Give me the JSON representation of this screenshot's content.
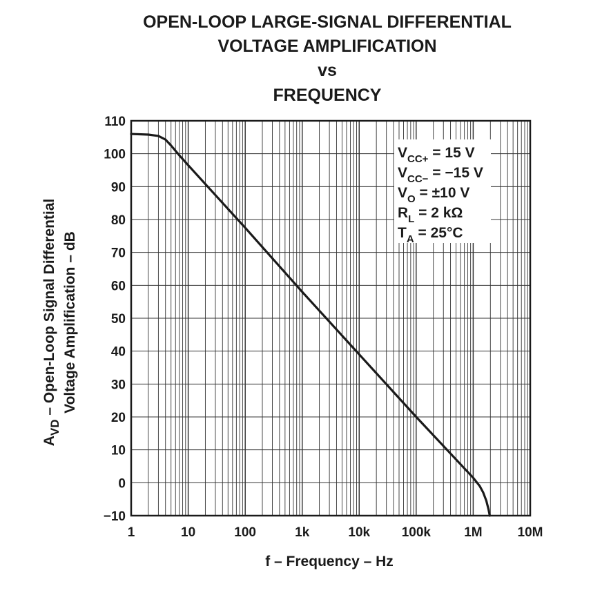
{
  "chart_data": {
    "type": "line",
    "title_lines": [
      "OPEN-LOOP LARGE-SIGNAL DIFFERENTIAL",
      "VOLTAGE AMPLIFICATION",
      "vs",
      "FREQUENCY"
    ],
    "xlabel": "f – Frequency – Hz",
    "ylabel": {
      "line1_prefix": "A",
      "line1_sub": "VD",
      "line1_rest": " – Open-Loop Signal Differential",
      "line2": "Voltage Amplification – dB"
    },
    "x_scale": "log",
    "xlim": [
      1,
      10000000
    ],
    "ylim": [
      -10,
      110
    ],
    "x_ticks": [
      {
        "value": 1,
        "label": "1"
      },
      {
        "value": 10,
        "label": "10"
      },
      {
        "value": 100,
        "label": "100"
      },
      {
        "value": 1000,
        "label": "1k"
      },
      {
        "value": 10000,
        "label": "10k"
      },
      {
        "value": 100000,
        "label": "100k"
      },
      {
        "value": 1000000,
        "label": "1M"
      },
      {
        "value": 10000000,
        "label": "10M"
      }
    ],
    "y_ticks": [
      {
        "value": 110,
        "label": "110"
      },
      {
        "value": 100,
        "label": "100"
      },
      {
        "value": 90,
        "label": "90"
      },
      {
        "value": 80,
        "label": "80"
      },
      {
        "value": 70,
        "label": "70"
      },
      {
        "value": 60,
        "label": "60"
      },
      {
        "value": 50,
        "label": "50"
      },
      {
        "value": 40,
        "label": "40"
      },
      {
        "value": 30,
        "label": "30"
      },
      {
        "value": 20,
        "label": "20"
      },
      {
        "value": 10,
        "label": "10"
      },
      {
        "value": 0,
        "label": "0"
      },
      {
        "value": -10,
        "label": "−10"
      }
    ],
    "grid": true,
    "series": [
      {
        "color": "#1a1a1a",
        "points": [
          [
            1,
            106
          ],
          [
            2,
            105.8
          ],
          [
            3,
            105.4
          ],
          [
            4,
            104.3
          ],
          [
            5,
            102.5
          ],
          [
            7,
            99.5
          ],
          [
            10,
            96.5
          ],
          [
            100,
            77.5
          ],
          [
            1000,
            58
          ],
          [
            10000,
            39
          ],
          [
            100000,
            20
          ],
          [
            1000000,
            1.5
          ],
          [
            1300000,
            -1
          ],
          [
            1500000,
            -3
          ],
          [
            1700000,
            -5.5
          ],
          [
            1850000,
            -8
          ],
          [
            1950000,
            -10
          ]
        ]
      }
    ],
    "conditions": [
      {
        "main": "V",
        "sub": "CC+",
        "rest": " = 15 V"
      },
      {
        "main": "V",
        "sub": "CC−",
        "rest": " = −15 V"
      },
      {
        "main": "V",
        "sub": "O",
        "rest": " = ±10 V"
      },
      {
        "main": "R",
        "sub": "L",
        "rest": " = 2 kΩ"
      },
      {
        "main": "T",
        "sub": "A",
        "rest": " = 25°C"
      }
    ],
    "conditions_placement": "top-right"
  }
}
